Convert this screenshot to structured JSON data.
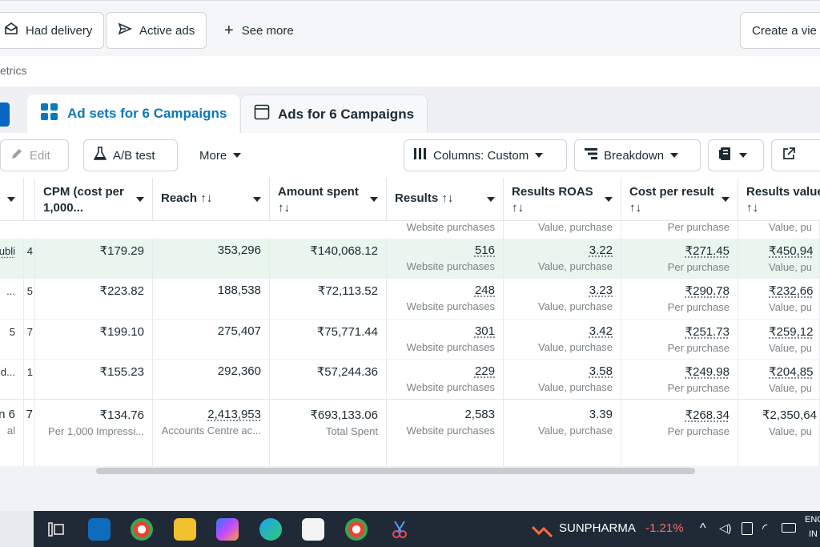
{
  "filters": {
    "had_delivery": "Had delivery",
    "active_ads": "Active ads",
    "see_more": "See more",
    "create_view": "Create a vie"
  },
  "metrics_label": "etrics",
  "tabs": {
    "adsets": "Ad sets for 6 Campaigns",
    "ads": "Ads for 6 Campaigns"
  },
  "toolbar": {
    "edit": "Edit",
    "ab_test": "A/B test",
    "more": "More",
    "columns": "Columns: Custom",
    "breakdown": "Breakdown"
  },
  "headers": {
    "cpm": [
      "CPM (cost per",
      "1,000..."
    ],
    "reach": "Reach ↑↓",
    "amount": [
      "Amount spent",
      "↑↓"
    ],
    "results": "Results ↑↓",
    "roas": [
      "Results ROAS",
      "↑↓"
    ],
    "cost": [
      "Cost per result",
      "↑↓"
    ],
    "value": [
      "Results value",
      "↑↓"
    ]
  },
  "partial_top": {
    "results_sub": "Website purchases",
    "roas_sub": "Value, purchase",
    "cost_sub": "Per purchase",
    "value_sub": "Value, pur"
  },
  "rows": [
    {
      "lead": "ubli",
      "lead2": "4",
      "cpm": "₹179.29",
      "reach": "353,296",
      "amount": "₹140,068.12",
      "results": "516",
      "results_sub": "Website purchases",
      "roas": "3.22",
      "roas_sub": "Value, purchase",
      "cost": "₹271.45",
      "cost_sub": "Per purchase",
      "value": "₹450,94",
      "value_sub": "Value, pur"
    },
    {
      "lead": "...",
      "lead2": "5",
      "cpm": "₹223.82",
      "reach": "188,538",
      "amount": "₹72,113.52",
      "results": "248",
      "results_sub": "Website purchases",
      "roas": "3.23",
      "roas_sub": "Value, purchase",
      "cost": "₹290.78",
      "cost_sub": "Per purchase",
      "value": "₹232,66",
      "value_sub": "Value, pur"
    },
    {
      "lead": "5",
      "lead2": "7",
      "cpm": "₹199.10",
      "reach": "275,407",
      "amount": "₹75,771.44",
      "results": "301",
      "results_sub": "Website purchases",
      "roas": "3.42",
      "roas_sub": "Value, purchase",
      "cost": "₹251.73",
      "cost_sub": "Per purchase",
      "value": "₹259,12",
      "value_sub": "Value, pur"
    },
    {
      "lead": "d...",
      "lead2": "1",
      "cpm": "₹155.23",
      "reach": "292,360",
      "amount": "₹57,244.36",
      "results": "229",
      "results_sub": "Website purchases",
      "roas": "3.58",
      "roas_sub": "Value, purchase",
      "cost": "₹249.98",
      "cost_sub": "Per purchase",
      "value": "₹204,85",
      "value_sub": "Value, pur"
    }
  ],
  "total": {
    "lead": "n 6",
    "lead2": "7",
    "lead_sub": "al",
    "cpm": "₹134.76",
    "cpm_sub": "Per 1,000 Impressi...",
    "reach": "2,413,953",
    "reach_sub": "Accounts Centre ac...",
    "amount": "₹693,133.06",
    "amount_sub": "Total Spent",
    "results": "2,583",
    "results_sub": "Website purchases",
    "roas": "3.39",
    "roas_sub": "Value, purchase",
    "cost": "₹268.34",
    "cost_sub": "Per purchase",
    "value": "₹2,350,64",
    "value_sub": "Value, pur"
  },
  "taskbar": {
    "ticker_name": "SUNPHARMA",
    "ticker_change": "-1.21%",
    "lang_top": "ENG",
    "lang_bottom": "IN"
  },
  "colors": {
    "accent": "#0a78be",
    "row_highlight": "#e9f5ee",
    "ticker_negative": "#ff6b6b"
  }
}
